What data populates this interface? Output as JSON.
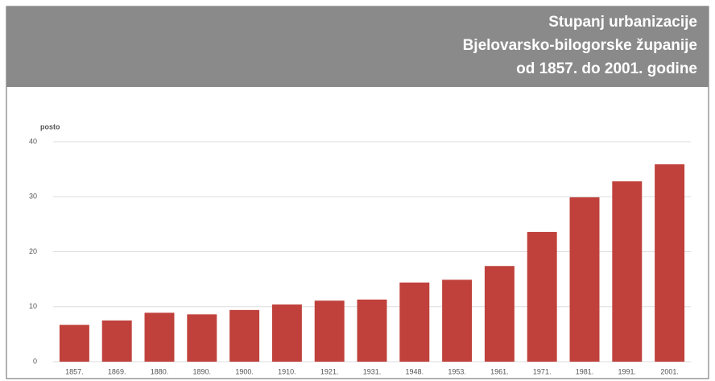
{
  "chart_data": {
    "type": "bar",
    "title": [
      "Stupanj urbanizacije",
      "Bjelovarsko-bilogorske županije",
      "od 1857. do 2001. godine"
    ],
    "y_label": "posto",
    "categories": [
      "1857.",
      "1869.",
      "1880.",
      "1890.",
      "1900.",
      "1910.",
      "1921.",
      "1931.",
      "1948.",
      "1953.",
      "1961.",
      "1971.",
      "1981.",
      "1991.",
      "2001."
    ],
    "values": [
      6.7,
      7.5,
      8.9,
      8.6,
      9.4,
      10.4,
      11.1,
      11.3,
      14.4,
      14.9,
      17.4,
      23.6,
      29.9,
      32.8,
      35.9
    ],
    "color": "#c0413b",
    "ylim": [
      0,
      40
    ],
    "yticks": [
      0,
      10,
      20,
      30,
      40
    ],
    "grid": true
  }
}
